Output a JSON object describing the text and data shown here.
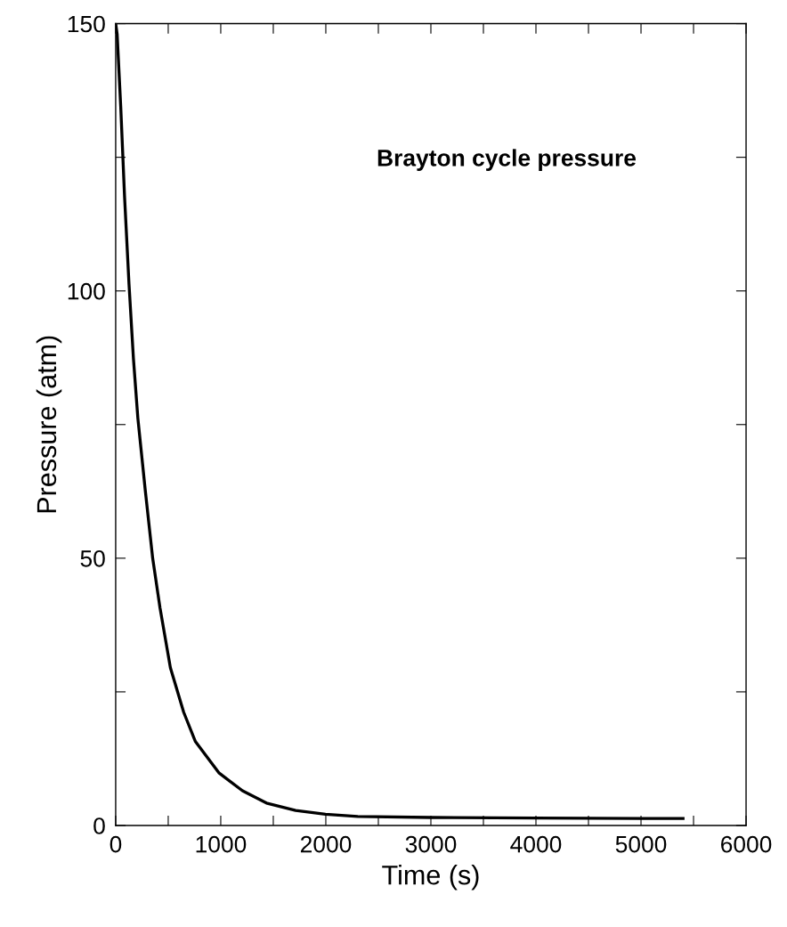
{
  "chart_data": {
    "type": "line",
    "title": "Brayton cycle pressure",
    "xlabel": "Time (s)",
    "ylabel": "Pressure (atm)",
    "x": [
      0,
      14,
      48,
      84,
      127,
      169,
      211,
      281,
      352,
      422,
      521,
      647,
      759,
      985,
      1207,
      1435,
      1713,
      1997,
      2304,
      3000,
      4000,
      5000,
      5400
    ],
    "series": [
      {
        "color": "#000000",
        "values": [
          150,
          148,
          134.5,
          117.8,
          101.2,
          87.3,
          76.2,
          62.8,
          50.0,
          40.7,
          29.5,
          21.2,
          15.7,
          9.8,
          6.5,
          4.2,
          2.8,
          2.1,
          1.7,
          1.5,
          1.4,
          1.3,
          1.3
        ]
      }
    ],
    "xlim": [
      0,
      6000
    ],
    "ylim": [
      0,
      150
    ],
    "xticks": [
      0,
      {
        "value": 500,
        "label": null
      },
      1000,
      {
        "value": 1500,
        "label": null
      },
      2000,
      {
        "value": 2500,
        "label": null
      },
      3000,
      {
        "value": 3500,
        "label": null
      },
      4000,
      {
        "value": 4500,
        "label": null
      },
      5000,
      {
        "value": 5500,
        "label": null
      },
      6000
    ],
    "yticks": [
      0,
      {
        "value": 25,
        "label": null
      },
      50,
      {
        "value": 75,
        "label": null
      },
      100,
      {
        "value": 125,
        "label": null
      },
      150
    ],
    "grid": false,
    "legend": false,
    "marker": "none",
    "line_style": "solid"
  }
}
